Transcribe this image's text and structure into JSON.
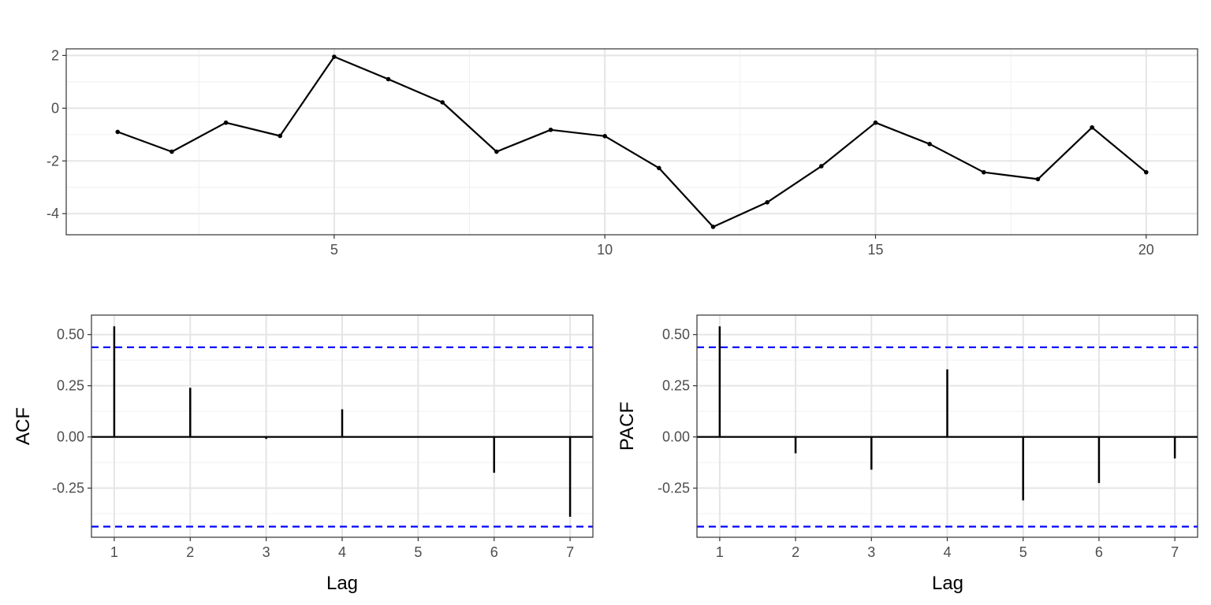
{
  "colors": {
    "background": "#ffffff",
    "panel_border": "#333333",
    "grid_major": "#e5e5e5",
    "grid_minor": "#f0f0f0",
    "series": "#000000",
    "confidence_band": "#0000ff",
    "tick_text": "#4d4d4d"
  },
  "chart_data": [
    {
      "id": "series",
      "type": "line",
      "title": "",
      "xlabel": "",
      "ylabel": "",
      "x": [
        1,
        2,
        3,
        4,
        5,
        6,
        7,
        8,
        9,
        10,
        11,
        12,
        13,
        14,
        15,
        16,
        17,
        18,
        19,
        20
      ],
      "values": [
        -0.9,
        -1.65,
        -0.55,
        -1.05,
        1.95,
        1.1,
        0.22,
        -1.65,
        -0.82,
        -1.06,
        -2.27,
        -4.5,
        -3.57,
        -2.2,
        -0.55,
        -1.36,
        -2.43,
        -2.69,
        -0.73,
        -2.43
      ],
      "xlim": [
        0.05,
        20.95
      ],
      "ylim": [
        -4.8,
        2.25
      ],
      "xticks": [
        5,
        10,
        15,
        20
      ],
      "xtick_labels": [
        "5",
        "10",
        "15",
        "20"
      ],
      "yticks": [
        2,
        0,
        -2,
        -4
      ],
      "ytick_labels": [
        "2",
        "0",
        "-2",
        "-4"
      ],
      "grid": true,
      "markers": true
    },
    {
      "id": "acf",
      "type": "bar",
      "title": "",
      "xlabel": "Lag",
      "ylabel": "ACF",
      "x": [
        1,
        2,
        3,
        4,
        5,
        6,
        7
      ],
      "values": [
        0.54,
        0.24,
        -0.01,
        0.135,
        0.0,
        -0.175,
        -0.39
      ],
      "xlim": [
        0.7,
        7.3
      ],
      "ylim": [
        -0.49,
        0.595
      ],
      "xticks": [
        1,
        2,
        3,
        4,
        5,
        6,
        7
      ],
      "xtick_labels": [
        "1",
        "2",
        "3",
        "4",
        "5",
        "6",
        "7"
      ],
      "yticks": [
        0.5,
        0.25,
        0.0,
        -0.25
      ],
      "ytick_labels": [
        "0.50",
        "0.25",
        "0.00",
        "-0.25"
      ],
      "confidence_limits": [
        0.438,
        -0.438
      ],
      "grid": true
    },
    {
      "id": "pacf",
      "type": "bar",
      "title": "",
      "xlabel": "Lag",
      "ylabel": "PACF",
      "x": [
        1,
        2,
        3,
        4,
        5,
        6,
        7
      ],
      "values": [
        0.54,
        -0.08,
        -0.16,
        0.33,
        -0.31,
        -0.225,
        -0.105
      ],
      "xlim": [
        0.7,
        7.3
      ],
      "ylim": [
        -0.49,
        0.595
      ],
      "xticks": [
        1,
        2,
        3,
        4,
        5,
        6,
        7
      ],
      "xtick_labels": [
        "1",
        "2",
        "3",
        "4",
        "5",
        "6",
        "7"
      ],
      "yticks": [
        0.5,
        0.25,
        0.0,
        -0.25
      ],
      "ytick_labels": [
        "0.50",
        "0.25",
        "0.00",
        "-0.25"
      ],
      "confidence_limits": [
        0.438,
        -0.438
      ],
      "grid": true
    }
  ]
}
